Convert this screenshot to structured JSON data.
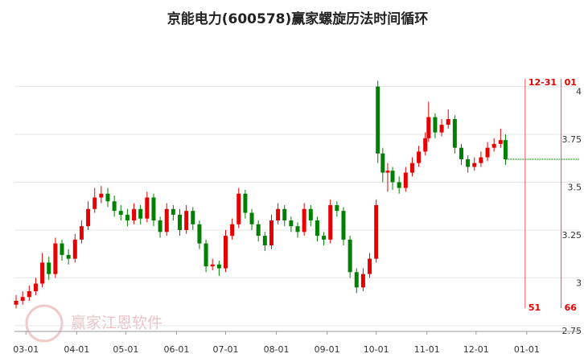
{
  "chart_data": {
    "type": "candlestick",
    "title": "京能电力(600578)赢家螺旋历法时间循环",
    "watermark": "赢家江恩软件",
    "up_color": "#e60000",
    "down_color": "#008000",
    "grid": true,
    "xlim": [
      -7,
      338
    ],
    "ylim": [
      2.72,
      4.2
    ],
    "yticks": [
      {
        "value": 2.75,
        "label": "2.75"
      },
      3,
      3.25,
      3.5,
      3.75,
      4
    ],
    "xticks": [
      {
        "value": 0,
        "label": "03-01"
      },
      {
        "value": 31,
        "label": "04-01"
      },
      {
        "value": 61,
        "label": "05-01"
      },
      {
        "value": 92,
        "label": "06-01"
      },
      {
        "value": 122,
        "label": "07-01"
      },
      {
        "value": 153,
        "label": "08-01"
      },
      {
        "value": 184,
        "label": "09-01"
      },
      {
        "value": 214,
        "label": "10-01"
      },
      {
        "value": 245,
        "label": "11-01"
      },
      {
        "value": 275,
        "label": "12-01"
      },
      {
        "value": 306,
        "label": "01-01"
      }
    ],
    "x": [
      -6,
      -2,
      2,
      6,
      10,
      14,
      18,
      22,
      26,
      30,
      34,
      38,
      42,
      46,
      50,
      54,
      58,
      62,
      66,
      70,
      74,
      78,
      82,
      86,
      90,
      94,
      98,
      102,
      106,
      110,
      114,
      118,
      122,
      126,
      130,
      134,
      138,
      142,
      146,
      150,
      154,
      158,
      162,
      166,
      170,
      174,
      178,
      182,
      186,
      190,
      194,
      198,
      202,
      206,
      210,
      214,
      215,
      218,
      221,
      224,
      228,
      232,
      236,
      240,
      244,
      246,
      250,
      254,
      258,
      262,
      266,
      270,
      274,
      278,
      282,
      286,
      290,
      293
    ],
    "open": [
      2.86,
      2.88,
      2.9,
      2.93,
      2.97,
      3.08,
      3.02,
      3.18,
      3.12,
      3.1,
      3.2,
      3.27,
      3.36,
      3.42,
      3.44,
      3.4,
      3.35,
      3.33,
      3.3,
      3.36,
      3.31,
      3.42,
      3.3,
      3.24,
      3.36,
      3.33,
      3.25,
      3.35,
      3.28,
      3.18,
      3.06,
      3.07,
      3.05,
      3.22,
      3.28,
      3.44,
      3.34,
      3.28,
      3.22,
      3.17,
      3.3,
      3.36,
      3.3,
      3.27,
      3.24,
      3.36,
      3.3,
      3.22,
      3.2,
      3.38,
      3.35,
      3.2,
      3.03,
      2.95,
      3.02,
      3.1,
      4.0,
      3.65,
      3.55,
      3.56,
      3.5,
      3.47,
      3.55,
      3.6,
      3.66,
      3.73,
      3.84,
      3.76,
      3.8,
      3.83,
      3.68,
      3.62,
      3.58,
      3.6,
      3.63,
      3.68,
      3.7,
      3.72
    ],
    "high": [
      2.91,
      2.93,
      2.96,
      3.0,
      3.13,
      3.11,
      3.21,
      3.2,
      3.15,
      3.23,
      3.3,
      3.4,
      3.47,
      3.48,
      3.47,
      3.43,
      3.38,
      3.36,
      3.39,
      3.38,
      3.45,
      3.44,
      3.32,
      3.39,
      3.38,
      3.36,
      3.38,
      3.37,
      3.3,
      3.2,
      3.1,
      3.09,
      3.25,
      3.31,
      3.47,
      3.46,
      3.36,
      3.3,
      3.24,
      3.33,
      3.39,
      3.38,
      3.32,
      3.29,
      3.39,
      3.38,
      3.32,
      3.24,
      3.41,
      3.4,
      3.37,
      3.22,
      3.05,
      3.05,
      3.13,
      3.41,
      4.03,
      3.68,
      3.6,
      3.58,
      3.53,
      3.58,
      3.63,
      3.69,
      3.76,
      3.92,
      3.86,
      3.83,
      3.88,
      3.85,
      3.7,
      3.64,
      3.63,
      3.66,
      3.71,
      3.73,
      3.78,
      3.75
    ],
    "low": [
      2.84,
      2.86,
      2.88,
      2.91,
      2.95,
      2.99,
      3.0,
      3.09,
      3.07,
      3.08,
      3.18,
      3.25,
      3.34,
      3.39,
      3.37,
      3.32,
      3.3,
      3.27,
      3.28,
      3.28,
      3.29,
      3.27,
      3.21,
      3.22,
      3.3,
      3.22,
      3.23,
      3.25,
      3.15,
      3.03,
      3.04,
      3.01,
      3.03,
      3.2,
      3.26,
      3.31,
      3.25,
      3.19,
      3.14,
      3.15,
      3.28,
      3.27,
      3.24,
      3.21,
      3.22,
      3.27,
      3.19,
      3.17,
      3.18,
      3.32,
      3.17,
      3.0,
      2.92,
      2.93,
      3.0,
      3.08,
      3.6,
      3.5,
      3.45,
      3.46,
      3.44,
      3.45,
      3.53,
      3.58,
      3.64,
      3.71,
      3.73,
      3.74,
      3.78,
      3.65,
      3.59,
      3.55,
      3.56,
      3.58,
      3.61,
      3.66,
      3.68,
      3.59
    ],
    "close": [
      2.88,
      2.9,
      2.93,
      2.97,
      3.08,
      3.02,
      3.18,
      3.12,
      3.1,
      3.2,
      3.27,
      3.36,
      3.42,
      3.44,
      3.4,
      3.35,
      3.33,
      3.3,
      3.36,
      3.31,
      3.42,
      3.3,
      3.24,
      3.36,
      3.33,
      3.25,
      3.35,
      3.28,
      3.18,
      3.06,
      3.07,
      3.05,
      3.22,
      3.28,
      3.44,
      3.34,
      3.28,
      3.22,
      3.17,
      3.3,
      3.36,
      3.3,
      3.27,
      3.24,
      3.36,
      3.3,
      3.22,
      3.2,
      3.38,
      3.35,
      3.2,
      3.03,
      2.95,
      3.02,
      3.1,
      3.38,
      3.65,
      3.55,
      3.56,
      3.5,
      3.47,
      3.55,
      3.6,
      3.66,
      3.73,
      3.84,
      3.76,
      3.8,
      3.83,
      3.68,
      3.62,
      3.58,
      3.6,
      3.63,
      3.68,
      3.7,
      3.72,
      3.62
    ],
    "reference_line": 3.62,
    "cycle_lines": [
      {
        "x": 305,
        "label": "12-31",
        "count": 51
      },
      {
        "x": 327,
        "label": "01",
        "count": 66
      }
    ]
  }
}
